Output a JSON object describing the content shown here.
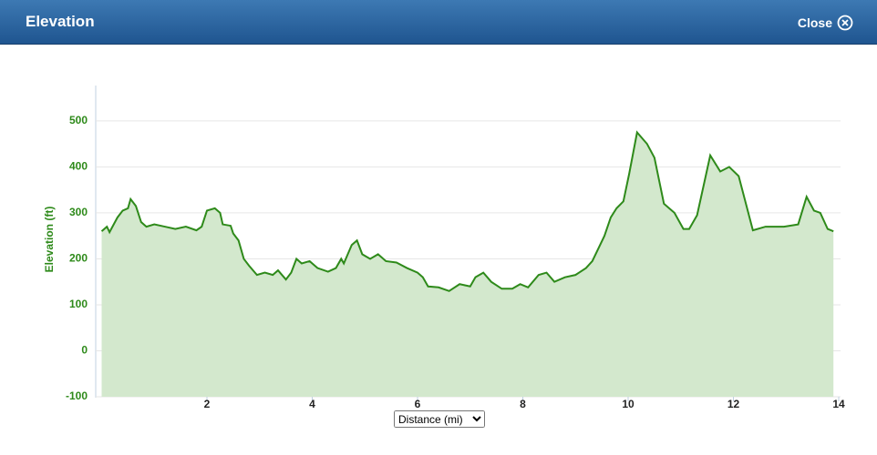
{
  "header": {
    "title": "Elevation",
    "close": "Close"
  },
  "x_axis_selector": "Distance (mi)",
  "chart_data": {
    "type": "area",
    "y_label": "Elevation (ft)",
    "color": "#2e8a1a",
    "fill": "#d3e8cd",
    "grid": true,
    "xlim": [
      0,
      14
    ],
    "ylim": [
      -100,
      575
    ],
    "xticks": [
      2,
      4,
      6,
      8,
      10,
      12,
      14
    ],
    "yticks": [
      -100,
      0,
      100,
      200,
      300,
      400,
      500
    ],
    "x": [
      0.0,
      0.1,
      0.15,
      0.3,
      0.4,
      0.5,
      0.55,
      0.65,
      0.75,
      0.85,
      1.0,
      1.2,
      1.4,
      1.6,
      1.8,
      1.9,
      2.0,
      2.15,
      2.25,
      2.3,
      2.45,
      2.5,
      2.6,
      2.7,
      2.8,
      2.95,
      3.1,
      3.25,
      3.35,
      3.5,
      3.6,
      3.7,
      3.8,
      3.95,
      4.1,
      4.3,
      4.45,
      4.55,
      4.6,
      4.75,
      4.85,
      4.95,
      5.1,
      5.25,
      5.4,
      5.6,
      5.8,
      6.0,
      6.1,
      6.2,
      6.4,
      6.6,
      6.8,
      7.0,
      7.1,
      7.25,
      7.4,
      7.6,
      7.8,
      7.95,
      8.1,
      8.3,
      8.45,
      8.6,
      8.8,
      9.0,
      9.2,
      9.32,
      9.55,
      9.67,
      9.78,
      9.91,
      10.02,
      10.17,
      10.36,
      10.5,
      10.68,
      10.88,
      11.05,
      11.16,
      11.31,
      11.56,
      11.75,
      11.92,
      12.1,
      12.37,
      12.61,
      12.96,
      13.23,
      13.39,
      13.53,
      13.65,
      13.79,
      13.9
    ],
    "values": [
      260,
      270,
      258,
      290,
      305,
      310,
      330,
      315,
      280,
      270,
      275,
      270,
      265,
      270,
      262,
      270,
      305,
      310,
      300,
      275,
      272,
      255,
      240,
      200,
      185,
      165,
      170,
      165,
      175,
      155,
      170,
      200,
      190,
      195,
      180,
      172,
      180,
      200,
      190,
      230,
      240,
      210,
      200,
      210,
      195,
      192,
      180,
      170,
      160,
      140,
      138,
      130,
      145,
      140,
      160,
      170,
      150,
      135,
      135,
      145,
      138,
      165,
      170,
      150,
      160,
      165,
      180,
      195,
      250,
      290,
      310,
      325,
      385,
      475,
      450,
      420,
      320,
      300,
      265,
      265,
      295,
      425,
      390,
      400,
      380,
      262,
      270,
      270,
      275,
      335,
      305,
      300,
      265,
      260
    ]
  }
}
